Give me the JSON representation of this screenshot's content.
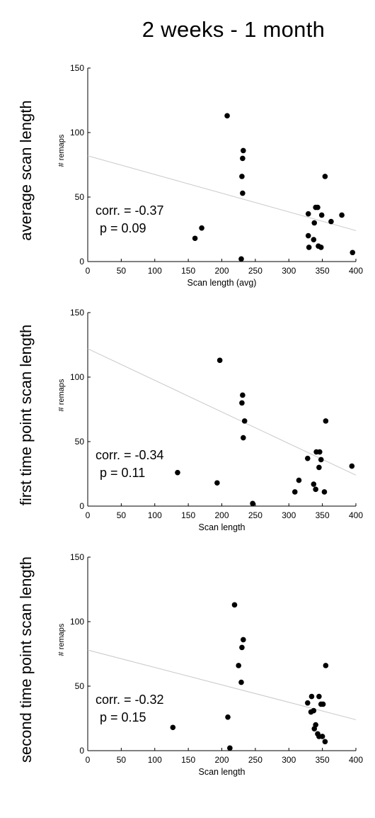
{
  "title": "2 weeks - 1 month",
  "chart_data": [
    {
      "type": "scatter",
      "row_label": "average scan length",
      "xlabel": "Scan length (avg)",
      "ylabel": "# remaps",
      "xlim": [
        0,
        400
      ],
      "ylim": [
        0,
        150
      ],
      "xticks": [
        0,
        50,
        100,
        150,
        200,
        250,
        300,
        350,
        400
      ],
      "yticks": [
        0,
        50,
        100,
        150
      ],
      "corr_text": "corr. = -0.37",
      "p_text": "p = 0.09",
      "fit": {
        "x": [
          0,
          400
        ],
        "y": [
          82,
          24
        ]
      },
      "points": [
        [
          160,
          18
        ],
        [
          170,
          26
        ],
        [
          208,
          113
        ],
        [
          229,
          2
        ],
        [
          230,
          66
        ],
        [
          231,
          53
        ],
        [
          231,
          80
        ],
        [
          232,
          86
        ],
        [
          329,
          37
        ],
        [
          329,
          20
        ],
        [
          330,
          11
        ],
        [
          337,
          17
        ],
        [
          338,
          30
        ],
        [
          340,
          42
        ],
        [
          343,
          42
        ],
        [
          344,
          12
        ],
        [
          348,
          11
        ],
        [
          349,
          36
        ],
        [
          354,
          66
        ],
        [
          363,
          31
        ],
        [
          379,
          36
        ],
        [
          395,
          7
        ]
      ]
    },
    {
      "type": "scatter",
      "row_label": "first time point scan length",
      "xlabel": "Scan length",
      "ylabel": "# remaps",
      "xlim": [
        0,
        400
      ],
      "ylim": [
        0,
        150
      ],
      "xticks": [
        0,
        50,
        100,
        150,
        200,
        250,
        300,
        350,
        400
      ],
      "yticks": [
        0,
        50,
        100,
        150
      ],
      "corr_text": "corr. = -0.34",
      "p_text": "p = 0.11",
      "fit": {
        "x": [
          0,
          400
        ],
        "y": [
          122,
          24
        ]
      },
      "points": [
        [
          134,
          26
        ],
        [
          193,
          18
        ],
        [
          197,
          113
        ],
        [
          230,
          80
        ],
        [
          231,
          86
        ],
        [
          232,
          53
        ],
        [
          234,
          66
        ],
        [
          246,
          2
        ],
        [
          309,
          11
        ],
        [
          315,
          20
        ],
        [
          328,
          37
        ],
        [
          337,
          17
        ],
        [
          340,
          13
        ],
        [
          341,
          42
        ],
        [
          345,
          30
        ],
        [
          346,
          42
        ],
        [
          348,
          36
        ],
        [
          353,
          11
        ],
        [
          355,
          66
        ],
        [
          394,
          31
        ]
      ]
    },
    {
      "type": "scatter",
      "row_label": "second time point scan length",
      "xlabel": "Scan length",
      "ylabel": "# remaps",
      "xlim": [
        0,
        400
      ],
      "ylim": [
        0,
        150
      ],
      "xticks": [
        0,
        50,
        100,
        150,
        200,
        250,
        300,
        350,
        400
      ],
      "yticks": [
        0,
        50,
        100,
        150
      ],
      "corr_text": "corr. = -0.32",
      "p_text": "p = 0.15",
      "fit": {
        "x": [
          0,
          400
        ],
        "y": [
          78,
          24
        ]
      },
      "points": [
        [
          127,
          18
        ],
        [
          209,
          26
        ],
        [
          212,
          2
        ],
        [
          219,
          113
        ],
        [
          225,
          66
        ],
        [
          229,
          53
        ],
        [
          230,
          80
        ],
        [
          232,
          86
        ],
        [
          328,
          37
        ],
        [
          333,
          30
        ],
        [
          334,
          42
        ],
        [
          337,
          31
        ],
        [
          338,
          17
        ],
        [
          340,
          20
        ],
        [
          343,
          13
        ],
        [
          345,
          11
        ],
        [
          345,
          42
        ],
        [
          348,
          36
        ],
        [
          350,
          11
        ],
        [
          351,
          36
        ],
        [
          354,
          7
        ],
        [
          355,
          66
        ]
      ]
    }
  ]
}
